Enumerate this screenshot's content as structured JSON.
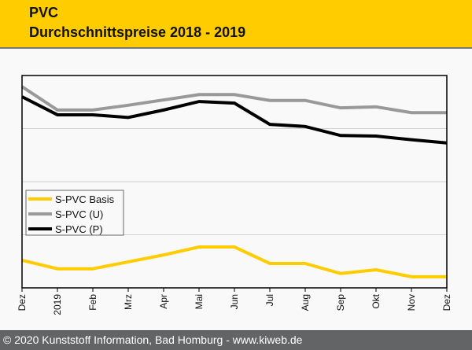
{
  "header": {
    "title": "PVC",
    "subtitle": "Durchschnittspreise 2018 - 2019"
  },
  "footer": {
    "text": "© 2020 Kunststoff Information, Bad Homburg - www.kiweb.de"
  },
  "colors": {
    "header_bg": "#ffcc00",
    "footer_bg": "#636466",
    "basis": "#ffcc00",
    "u": "#999999",
    "p": "#000000",
    "grid": "#d0d0d0"
  },
  "chart_data": {
    "type": "line",
    "title": "PVC Durchschnittspreise 2018 - 2019",
    "xlabel": "",
    "ylabel": "",
    "y_axis_labels_shown": false,
    "value_units": "relative (unlabeled axis, gridline units)",
    "ylim": [
      0,
      4
    ],
    "grid": true,
    "legend_position": "center-left",
    "categories": [
      "Dez",
      "2019",
      "Feb",
      "Mrz",
      "Apr",
      "Mai",
      "Jun",
      "Jul",
      "Aug",
      "Sep",
      "Okt",
      "Nov",
      "Dez"
    ],
    "series": [
      {
        "name": "S-PVC Basis",
        "color": "#ffcc00",
        "values": [
          0.52,
          0.36,
          0.36,
          0.49,
          0.62,
          0.77,
          0.77,
          0.46,
          0.46,
          0.27,
          0.34,
          0.21,
          0.21
        ]
      },
      {
        "name": "S-PVC (U)",
        "color": "#999999",
        "values": [
          3.79,
          3.35,
          3.35,
          3.44,
          3.54,
          3.64,
          3.64,
          3.53,
          3.53,
          3.39,
          3.41,
          3.3,
          3.3
        ]
      },
      {
        "name": "S-PVC (P)",
        "color": "#000000",
        "values": [
          3.6,
          3.26,
          3.26,
          3.21,
          3.35,
          3.51,
          3.48,
          3.08,
          3.04,
          2.87,
          2.86,
          2.79,
          2.73
        ]
      }
    ]
  }
}
